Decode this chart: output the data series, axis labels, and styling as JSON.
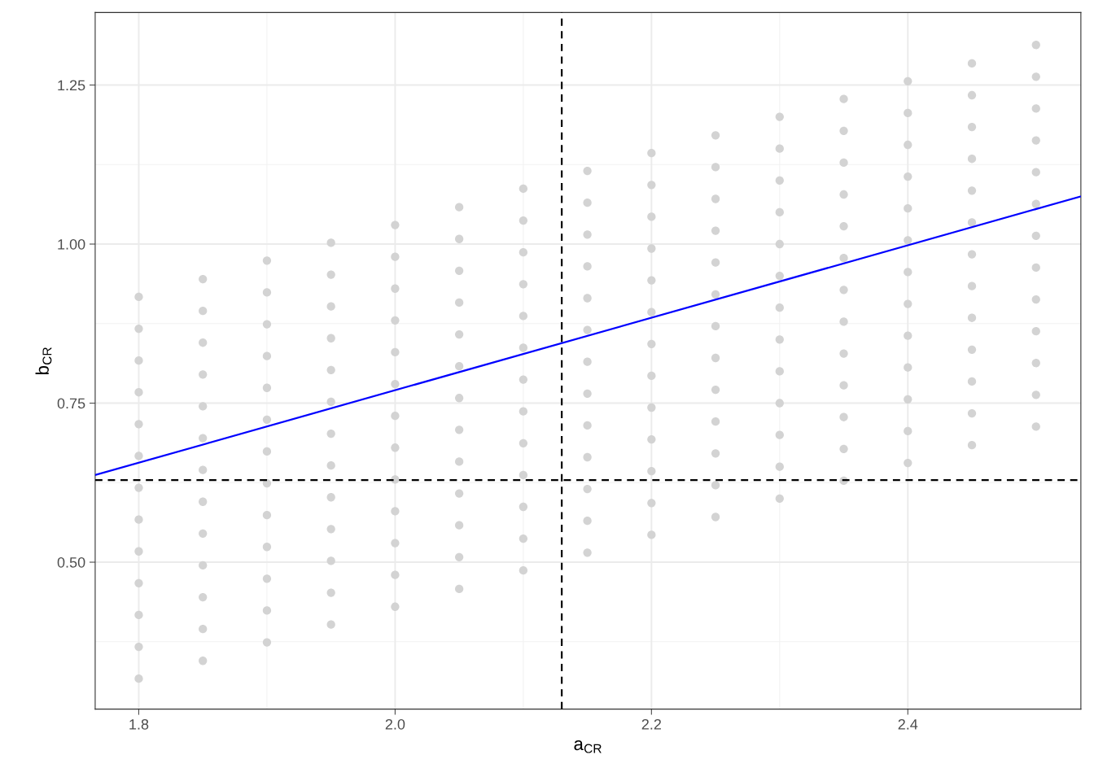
{
  "chart_data": {
    "type": "scatter",
    "xlabel": "a$_{CR}$",
    "ylabel": "b$_{CR}$",
    "xlim": [
      1.766,
      2.535
    ],
    "ylim": [
      0.269,
      1.364
    ],
    "xticks": [
      1.8,
      {
        "value": 2.0,
        "label": "2.0"
      },
      2.2,
      2.4
    ],
    "yticks": [
      {
        "value": 0.5,
        "label": "0.50"
      },
      {
        "value": 0.75,
        "label": "0.75"
      },
      {
        "value": 1.0,
        "label": "1.00"
      },
      {
        "value": 1.25,
        "label": "1.25"
      }
    ],
    "grid": true,
    "marker": "circle",
    "legend": false,
    "ref_lines": [
      {
        "axis": "x",
        "value": 2.13,
        "color": "#000000",
        "line_style": "dashed"
      },
      {
        "axis": "y",
        "value": 0.629,
        "color": "#000000",
        "line_style": "dashed"
      }
    ],
    "series": [
      {
        "color": "#d3d3d3",
        "x": [
          1.8,
          1.8,
          1.8,
          1.8,
          1.8,
          1.8,
          1.8,
          1.8,
          1.8,
          1.8,
          1.8,
          1.8,
          1.8,
          1.85,
          1.85,
          1.85,
          1.85,
          1.85,
          1.85,
          1.85,
          1.85,
          1.85,
          1.85,
          1.85,
          1.85,
          1.85,
          1.9,
          1.9,
          1.9,
          1.9,
          1.9,
          1.9,
          1.9,
          1.9,
          1.9,
          1.9,
          1.9,
          1.9,
          1.9,
          1.95,
          1.95,
          1.95,
          1.95,
          1.95,
          1.95,
          1.95,
          1.95,
          1.95,
          1.95,
          1.95,
          1.95,
          1.95,
          2.0,
          2.0,
          2.0,
          2.0,
          2.0,
          2.0,
          2.0,
          2.0,
          2.0,
          2.0,
          2.0,
          2.0,
          2.0,
          2.05,
          2.05,
          2.05,
          2.05,
          2.05,
          2.05,
          2.05,
          2.05,
          2.05,
          2.05,
          2.05,
          2.05,
          2.05,
          2.1,
          2.1,
          2.1,
          2.1,
          2.1,
          2.1,
          2.1,
          2.1,
          2.1,
          2.1,
          2.1,
          2.1,
          2.1,
          2.15,
          2.15,
          2.15,
          2.15,
          2.15,
          2.15,
          2.15,
          2.15,
          2.15,
          2.15,
          2.15,
          2.15,
          2.15,
          2.2,
          2.2,
          2.2,
          2.2,
          2.2,
          2.2,
          2.2,
          2.2,
          2.2,
          2.2,
          2.2,
          2.2,
          2.2,
          2.25,
          2.25,
          2.25,
          2.25,
          2.25,
          2.25,
          2.25,
          2.25,
          2.25,
          2.25,
          2.25,
          2.25,
          2.25,
          2.3,
          2.3,
          2.3,
          2.3,
          2.3,
          2.3,
          2.3,
          2.3,
          2.3,
          2.3,
          2.3,
          2.3,
          2.3,
          2.35,
          2.35,
          2.35,
          2.35,
          2.35,
          2.35,
          2.35,
          2.35,
          2.35,
          2.35,
          2.35,
          2.35,
          2.35,
          2.4,
          2.4,
          2.4,
          2.4,
          2.4,
          2.4,
          2.4,
          2.4,
          2.4,
          2.4,
          2.4,
          2.4,
          2.4,
          2.45,
          2.45,
          2.45,
          2.45,
          2.45,
          2.45,
          2.45,
          2.45,
          2.45,
          2.45,
          2.45,
          2.45,
          2.45,
          2.5,
          2.5,
          2.5,
          2.5,
          2.5,
          2.5,
          2.5,
          2.5,
          2.5,
          2.5,
          2.5,
          2.5,
          2.5
        ],
        "values": [
          0.317,
          0.367,
          0.417,
          0.467,
          0.517,
          0.567,
          0.617,
          0.667,
          0.717,
          0.767,
          0.817,
          0.867,
          0.917,
          0.345,
          0.395,
          0.445,
          0.495,
          0.545,
          0.595,
          0.645,
          0.695,
          0.745,
          0.795,
          0.845,
          0.895,
          0.945,
          0.374,
          0.424,
          0.474,
          0.524,
          0.574,
          0.624,
          0.674,
          0.724,
          0.774,
          0.824,
          0.874,
          0.924,
          0.974,
          0.402,
          0.452,
          0.502,
          0.552,
          0.602,
          0.652,
          0.702,
          0.752,
          0.802,
          0.852,
          0.902,
          0.952,
          1.002,
          0.43,
          0.48,
          0.53,
          0.58,
          0.63,
          0.68,
          0.73,
          0.78,
          0.83,
          0.88,
          0.93,
          0.98,
          1.03,
          0.458,
          0.508,
          0.558,
          0.608,
          0.658,
          0.708,
          0.758,
          0.808,
          0.858,
          0.908,
          0.958,
          1.008,
          1.058,
          0.487,
          0.537,
          0.587,
          0.637,
          0.687,
          0.737,
          0.787,
          0.837,
          0.887,
          0.937,
          0.987,
          1.037,
          1.087,
          0.515,
          0.565,
          0.615,
          0.665,
          0.715,
          0.765,
          0.815,
          0.865,
          0.915,
          0.965,
          1.015,
          1.065,
          1.115,
          0.543,
          0.593,
          0.643,
          0.693,
          0.743,
          0.793,
          0.843,
          0.893,
          0.943,
          0.993,
          1.043,
          1.093,
          1.143,
          0.571,
          0.621,
          0.671,
          0.721,
          0.771,
          0.821,
          0.871,
          0.921,
          0.971,
          1.021,
          1.071,
          1.121,
          1.171,
          0.6,
          0.65,
          0.7,
          0.75,
          0.8,
          0.85,
          0.9,
          0.95,
          1.0,
          1.05,
          1.1,
          1.15,
          1.2,
          0.628,
          0.678,
          0.728,
          0.778,
          0.828,
          0.878,
          0.928,
          0.978,
          1.028,
          1.078,
          1.128,
          1.178,
          1.228,
          0.656,
          0.706,
          0.756,
          0.806,
          0.856,
          0.906,
          0.956,
          1.006,
          1.056,
          1.106,
          1.156,
          1.206,
          1.256,
          0.684,
          0.734,
          0.784,
          0.834,
          0.884,
          0.934,
          0.984,
          1.034,
          1.084,
          1.134,
          1.184,
          1.234,
          1.284,
          0.713,
          0.763,
          0.813,
          0.863,
          0.913,
          0.963,
          1.013,
          1.063,
          1.113,
          1.163,
          1.213,
          1.263,
          1.313
        ]
      },
      {
        "type": "line",
        "color": "#0000ff",
        "marker": "none",
        "line_style": "solid",
        "x": [
          1.766,
          2.535
        ],
        "values": [
          0.637,
          1.075
        ]
      }
    ]
  }
}
